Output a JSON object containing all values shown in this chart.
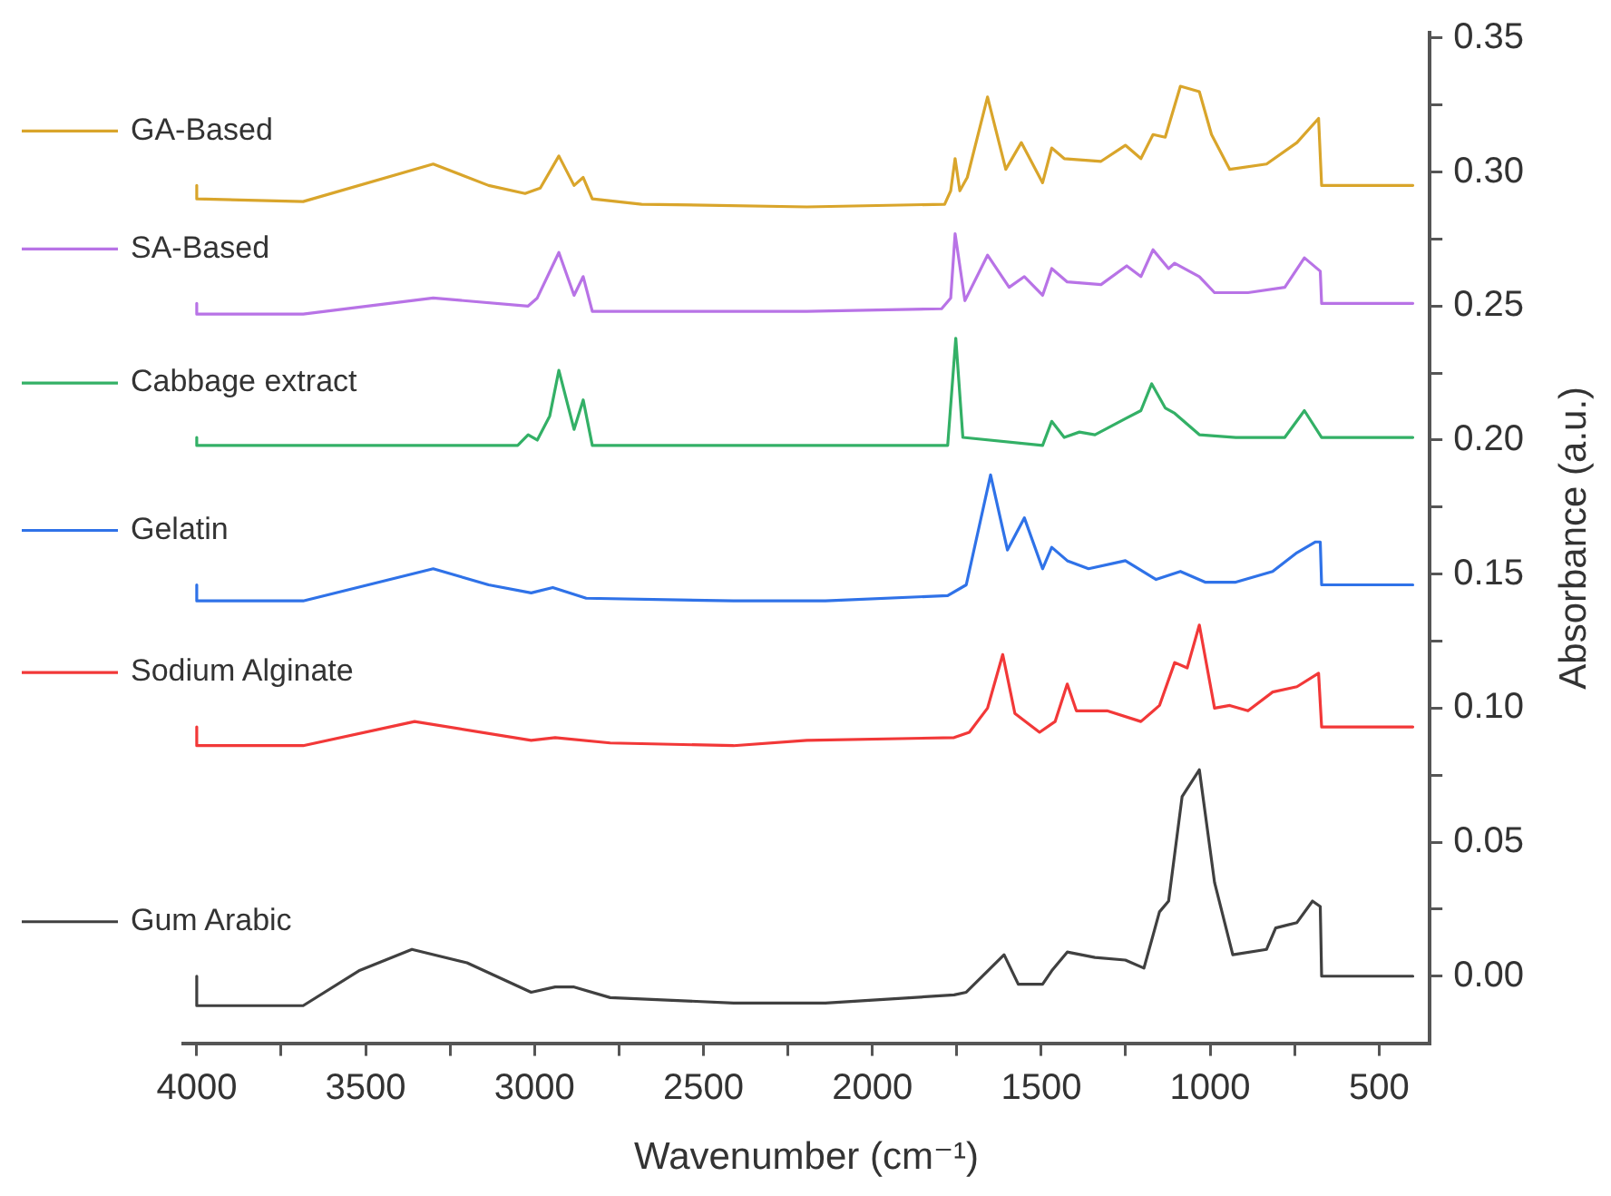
{
  "chart_data": {
    "type": "line",
    "xlabel": "Wavenumber (cm⁻¹)",
    "ylabel": "Absorbance (a.u.)",
    "xlim": [
      4040,
      350
    ],
    "ylim": [
      -0.025,
      0.352
    ],
    "xticks": [
      4000,
      {
        "value": 3750,
        "label": null
      },
      3500,
      {
        "value": 3250,
        "label": null
      },
      3000,
      {
        "value": 2750,
        "label": null
      },
      2500,
      {
        "value": 2250,
        "label": null
      },
      2000,
      {
        "value": 1750,
        "label": null
      },
      1500,
      {
        "value": 1250,
        "label": null
      },
      1000,
      {
        "value": 750,
        "label": null
      },
      500
    ],
    "yticks": [
      {
        "value": 0,
        "label": "0.00"
      },
      {
        "value": 0.025,
        "label": null
      },
      {
        "value": 0.05,
        "label": "0.05"
      },
      {
        "value": 0.075,
        "label": null
      },
      {
        "value": 0.1,
        "label": "0.10"
      },
      {
        "value": 0.125,
        "label": null
      },
      {
        "value": 0.15,
        "label": "0.15"
      },
      {
        "value": 0.175,
        "label": null
      },
      {
        "value": 0.2,
        "label": "0.20"
      },
      {
        "value": 0.225,
        "label": null
      },
      {
        "value": 0.25,
        "label": "0.25"
      },
      {
        "value": 0.275,
        "label": null
      },
      {
        "value": 0.3,
        "label": "0.30"
      },
      {
        "value": 0.325,
        "label": null
      },
      {
        "value": 0.35,
        "label": "0.35"
      }
    ],
    "legend": "left",
    "grid": false,
    "series": [
      {
        "name": "GA-Based",
        "color": "#d9a52b",
        "x": [
          4000,
          4000,
          3685,
          3300,
          3136,
          3028,
          2983,
          2928,
          2883,
          2856,
          2829,
          2683,
          2194,
          1786,
          1768,
          1755,
          1741,
          1719,
          1659,
          1605,
          1559,
          1496,
          1469,
          1432,
          1323,
          1251,
          1205,
          1169,
          1133,
          1088,
          1032,
          996,
          942,
          833,
          743,
          679,
          670,
          400
        ],
        "values": [
          0.295,
          0.29,
          0.289,
          0.303,
          0.295,
          0.292,
          0.294,
          0.306,
          0.295,
          0.298,
          0.29,
          0.288,
          0.287,
          0.288,
          0.293,
          0.305,
          0.293,
          0.298,
          0.328,
          0.301,
          0.311,
          0.296,
          0.309,
          0.305,
          0.304,
          0.31,
          0.305,
          0.314,
          0.313,
          0.332,
          0.33,
          0.314,
          0.301,
          0.303,
          0.311,
          0.32,
          0.295,
          0.295
        ]
      },
      {
        "name": "SA-Based",
        "color": "#b873e6",
        "x": [
          4000,
          4000,
          3685,
          3300,
          3019,
          2992,
          2928,
          2883,
          2856,
          2829,
          2194,
          1795,
          1768,
          1755,
          1726,
          1659,
          1595,
          1550,
          1496,
          1469,
          1423,
          1323,
          1247,
          1205,
          1169,
          1123,
          1105,
          1032,
          987,
          888,
          779,
          721,
          674,
          670,
          400
        ],
        "values": [
          0.251,
          0.247,
          0.247,
          0.253,
          0.25,
          0.253,
          0.27,
          0.254,
          0.261,
          0.248,
          0.248,
          0.249,
          0.253,
          0.277,
          0.252,
          0.269,
          0.257,
          0.261,
          0.254,
          0.264,
          0.259,
          0.258,
          0.265,
          0.261,
          0.271,
          0.264,
          0.266,
          0.261,
          0.255,
          0.255,
          0.257,
          0.268,
          0.263,
          0.251,
          0.251
        ]
      },
      {
        "name": "Cabbage extract",
        "color": "#33b066",
        "x": [
          4000,
          4000,
          3050,
          3019,
          2992,
          2955,
          2928,
          2883,
          2856,
          2829,
          2194,
          1777,
          1753,
          1732,
          1496,
          1469,
          1432,
          1387,
          1341,
          1251,
          1205,
          1173,
          1133,
          1105,
          1032,
          924,
          779,
          721,
          670,
          400
        ],
        "values": [
          0.201,
          0.198,
          0.198,
          0.202,
          0.2,
          0.209,
          0.226,
          0.204,
          0.215,
          0.198,
          0.198,
          0.198,
          0.238,
          0.201,
          0.198,
          0.207,
          0.201,
          0.203,
          0.202,
          0.208,
          0.211,
          0.221,
          0.212,
          0.21,
          0.202,
          0.201,
          0.201,
          0.211,
          0.201,
          0.201
        ]
      },
      {
        "name": "Gelatin",
        "color": "#2f72e8",
        "x": [
          4000,
          4000,
          3685,
          3300,
          3136,
          3010,
          2946,
          2847,
          2411,
          2139,
          1777,
          1722,
          1650,
          1600,
          1550,
          1496,
          1469,
          1423,
          1360,
          1251,
          1160,
          1088,
          1015,
          924,
          815,
          743,
          688,
          674,
          670,
          400
        ],
        "values": [
          0.146,
          0.14,
          0.14,
          0.152,
          0.146,
          0.143,
          0.145,
          0.141,
          0.14,
          0.14,
          0.142,
          0.146,
          0.187,
          0.159,
          0.171,
          0.152,
          0.16,
          0.155,
          0.152,
          0.155,
          0.148,
          0.151,
          0.147,
          0.147,
          0.151,
          0.158,
          0.162,
          0.162,
          0.146,
          0.146
        ]
      },
      {
        "name": "Sodium Alginate",
        "color": "#f23838",
        "x": [
          4000,
          4000,
          3685,
          3355,
          3010,
          2939,
          2776,
          2411,
          2194,
          1758,
          1713,
          1659,
          1614,
          1578,
          1505,
          1459,
          1423,
          1396,
          1305,
          1205,
          1150,
          1105,
          1068,
          1032,
          987,
          942,
          888,
          815,
          743,
          679,
          670,
          400
        ],
        "values": [
          0.093,
          0.086,
          0.086,
          0.095,
          0.088,
          0.089,
          0.087,
          0.086,
          0.088,
          0.089,
          0.091,
          0.1,
          0.12,
          0.098,
          0.091,
          0.095,
          0.109,
          0.099,
          0.099,
          0.095,
          0.101,
          0.117,
          0.115,
          0.131,
          0.1,
          0.101,
          0.099,
          0.106,
          0.108,
          0.113,
          0.093,
          0.093
        ]
      },
      {
        "name": "Gum Arabic",
        "color": "#404040",
        "x": [
          4000,
          4000,
          3685,
          3520,
          3363,
          3200,
          3010,
          2939,
          2885,
          2776,
          2411,
          2139,
          1758,
          1722,
          1610,
          1568,
          1496,
          1469,
          1423,
          1341,
          1251,
          1196,
          1150,
          1123,
          1083,
          1032,
          987,
          933,
          833,
          806,
          743,
          697,
          674,
          670,
          400
        ],
        "values": [
          0.0,
          -0.011,
          -0.011,
          0.002,
          0.01,
          0.005,
          -0.006,
          -0.004,
          -0.004,
          -0.008,
          -0.01,
          -0.01,
          -0.007,
          -0.006,
          0.008,
          -0.003,
          -0.003,
          0.002,
          0.009,
          0.007,
          0.006,
          0.003,
          0.024,
          0.028,
          0.067,
          0.077,
          0.035,
          0.008,
          0.01,
          0.018,
          0.02,
          0.028,
          0.026,
          0.0,
          0.0
        ]
      }
    ]
  }
}
